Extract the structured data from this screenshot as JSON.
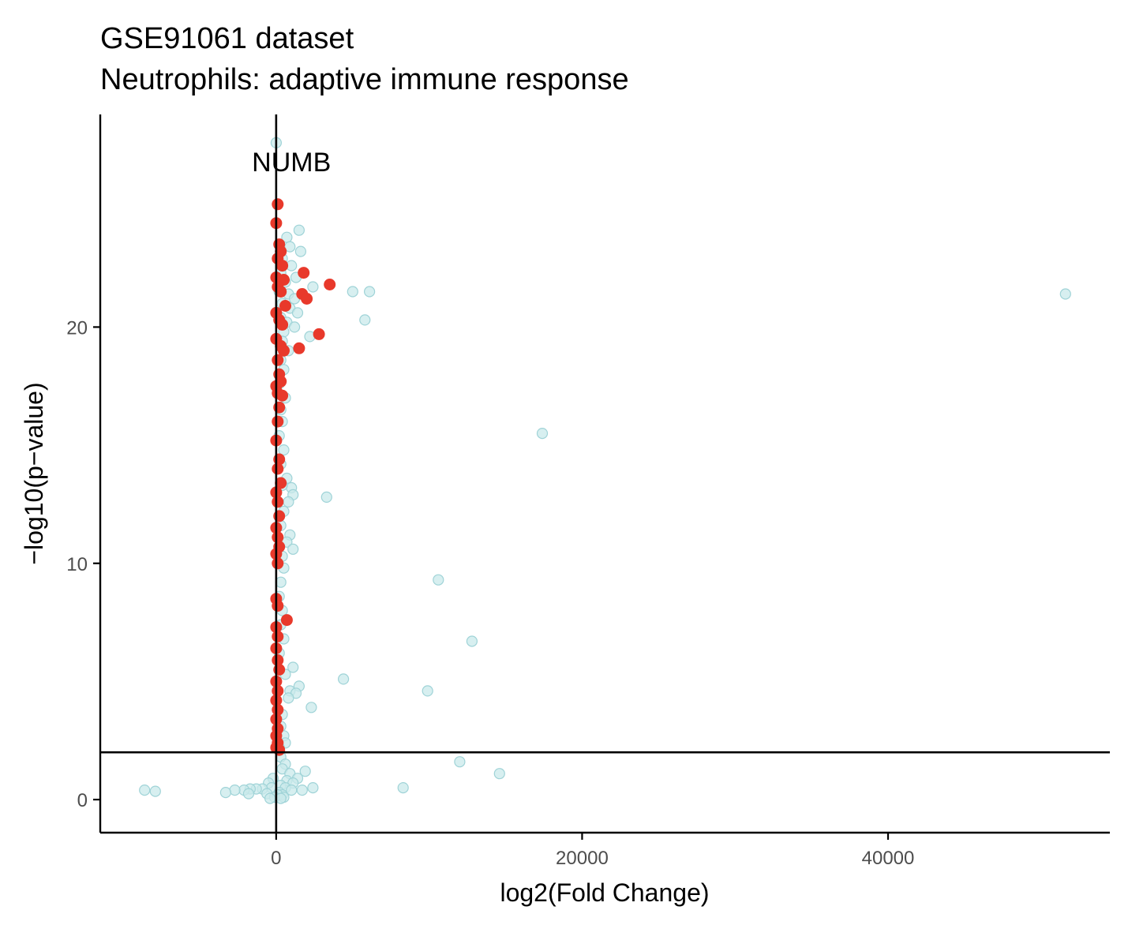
{
  "chart_data": {
    "type": "scatter",
    "title": "GSE91061 dataset",
    "subtitle": "Neutrophils: adaptive immune response",
    "xlabel": "log2(Fold Change)",
    "ylabel": "−log10(p−value)",
    "xlim": [
      -11500,
      54500
    ],
    "ylim": [
      -1.4,
      29
    ],
    "x_ticks": [
      {
        "value": 0,
        "label": "0"
      },
      {
        "value": 20000,
        "label": "20000"
      },
      {
        "value": 40000,
        "label": "40000"
      }
    ],
    "y_ticks": [
      {
        "value": 0,
        "label": "0"
      },
      {
        "value": 10,
        "label": "10"
      },
      {
        "value": 20,
        "label": "20"
      }
    ],
    "grid": false,
    "colors": {
      "background": "#c9e9eb",
      "background_stroke": "#9fd3d7",
      "highlight": "#e8392b",
      "reference_line": "#000000"
    },
    "reference_lines": {
      "vertical_x": 0,
      "horizontal_y": 2
    },
    "annotations": [
      {
        "label": "NUMB",
        "x": 1000,
        "y": 26.6
      }
    ],
    "series": [
      {
        "role": "background",
        "points": [
          [
            0,
            27.8
          ],
          [
            1500,
            24.1
          ],
          [
            700,
            23.8
          ],
          [
            200,
            23.5
          ],
          [
            900,
            23.4
          ],
          [
            1600,
            23.2
          ],
          [
            400,
            22.9
          ],
          [
            1000,
            22.6
          ],
          [
            300,
            22.3
          ],
          [
            1300,
            22.1
          ],
          [
            600,
            21.9
          ],
          [
            2400,
            21.7
          ],
          [
            200,
            21.5
          ],
          [
            800,
            21.4
          ],
          [
            1200,
            21.2
          ],
          [
            400,
            21.0
          ],
          [
            900,
            20.8
          ],
          [
            1400,
            20.6
          ],
          [
            300,
            20.4
          ],
          [
            700,
            20.2
          ],
          [
            1200,
            20.0
          ],
          [
            500,
            19.8
          ],
          [
            2200,
            19.6
          ],
          [
            400,
            19.4
          ],
          [
            800,
            19.0
          ],
          [
            300,
            18.6
          ],
          [
            500,
            18.2
          ],
          [
            200,
            17.6
          ],
          [
            600,
            17.0
          ],
          [
            300,
            16.5
          ],
          [
            400,
            16.0
          ],
          [
            200,
            15.4
          ],
          [
            500,
            14.8
          ],
          [
            300,
            14.2
          ],
          [
            700,
            13.6
          ],
          [
            1000,
            13.2
          ],
          [
            400,
            13.3
          ],
          [
            1100,
            12.9
          ],
          [
            800,
            12.6
          ],
          [
            500,
            12.2
          ],
          [
            300,
            11.6
          ],
          [
            900,
            11.2
          ],
          [
            700,
            10.9
          ],
          [
            1100,
            10.6
          ],
          [
            400,
            10.3
          ],
          [
            500,
            9.8
          ],
          [
            300,
            9.2
          ],
          [
            200,
            8.6
          ],
          [
            400,
            8.0
          ],
          [
            300,
            7.4
          ],
          [
            500,
            6.8
          ],
          [
            200,
            6.2
          ],
          [
            1100,
            5.6
          ],
          [
            600,
            5.3
          ],
          [
            1500,
            4.8
          ],
          [
            900,
            4.6
          ],
          [
            1300,
            4.5
          ],
          [
            800,
            4.3
          ],
          [
            2300,
            3.9
          ],
          [
            400,
            3.6
          ],
          [
            300,
            3.1
          ],
          [
            500,
            2.7
          ],
          [
            600,
            2.4
          ],
          [
            200,
            2.2
          ],
          [
            300,
            1.8
          ],
          [
            600,
            1.5
          ],
          [
            400,
            1.3
          ],
          [
            900,
            1.1
          ],
          [
            1900,
            1.2
          ],
          [
            1400,
            0.9
          ],
          [
            700,
            0.8
          ],
          [
            1100,
            0.7
          ],
          [
            300,
            0.6
          ],
          [
            -200,
            0.9
          ],
          [
            -500,
            0.7
          ],
          [
            600,
            0.5
          ],
          [
            1000,
            0.4
          ],
          [
            2400,
            0.5
          ],
          [
            1700,
            0.4
          ],
          [
            -300,
            0.5
          ],
          [
            -900,
            0.45
          ],
          [
            -1300,
            0.45
          ],
          [
            -1700,
            0.45
          ],
          [
            -2100,
            0.4
          ],
          [
            -2700,
            0.4
          ],
          [
            -1800,
            0.25
          ],
          [
            -3300,
            0.3
          ],
          [
            200,
            0.3
          ],
          [
            -600,
            0.25
          ],
          [
            400,
            0.2
          ],
          [
            100,
            0.2
          ],
          [
            -100,
            0.1
          ],
          [
            500,
            0.1
          ],
          [
            -400,
            0.05
          ],
          [
            300,
            0.05
          ],
          [
            -8600,
            0.4
          ],
          [
            -7900,
            0.35
          ],
          [
            5000,
            21.5
          ],
          [
            6100,
            21.5
          ],
          [
            5800,
            20.3
          ],
          [
            17400,
            15.5
          ],
          [
            3300,
            12.8
          ],
          [
            10600,
            9.3
          ],
          [
            12800,
            6.7
          ],
          [
            4400,
            5.1
          ],
          [
            9900,
            4.6
          ],
          [
            12000,
            1.6
          ],
          [
            14600,
            1.1
          ],
          [
            8300,
            0.5
          ],
          [
            51600,
            21.4
          ]
        ]
      },
      {
        "role": "highlight",
        "points": [
          [
            100,
            25.2
          ],
          [
            0,
            24.4
          ],
          [
            200,
            23.5
          ],
          [
            300,
            23.2
          ],
          [
            100,
            22.9
          ],
          [
            400,
            22.6
          ],
          [
            1800,
            22.3
          ],
          [
            0,
            22.1
          ],
          [
            500,
            22.0
          ],
          [
            3500,
            21.8
          ],
          [
            100,
            21.7
          ],
          [
            1700,
            21.4
          ],
          [
            2000,
            21.2
          ],
          [
            300,
            21.5
          ],
          [
            600,
            20.9
          ],
          [
            0,
            20.6
          ],
          [
            200,
            20.3
          ],
          [
            400,
            20.1
          ],
          [
            2800,
            19.7
          ],
          [
            0,
            19.5
          ],
          [
            300,
            19.2
          ],
          [
            1500,
            19.1
          ],
          [
            500,
            19.0
          ],
          [
            100,
            18.6
          ],
          [
            200,
            18.0
          ],
          [
            0,
            17.5
          ],
          [
            300,
            17.7
          ],
          [
            100,
            17.2
          ],
          [
            400,
            17.1
          ],
          [
            200,
            16.6
          ],
          [
            100,
            16.0
          ],
          [
            0,
            15.2
          ],
          [
            200,
            14.4
          ],
          [
            100,
            14.0
          ],
          [
            300,
            13.4
          ],
          [
            0,
            13.0
          ],
          [
            100,
            12.6
          ],
          [
            200,
            12.0
          ],
          [
            0,
            11.5
          ],
          [
            100,
            11.1
          ],
          [
            200,
            10.7
          ],
          [
            0,
            10.4
          ],
          [
            100,
            10.0
          ],
          [
            0,
            8.5
          ],
          [
            100,
            8.2
          ],
          [
            700,
            7.6
          ],
          [
            0,
            7.3
          ],
          [
            100,
            6.9
          ],
          [
            0,
            6.4
          ],
          [
            100,
            5.9
          ],
          [
            200,
            5.5
          ],
          [
            0,
            5.0
          ],
          [
            100,
            4.6
          ],
          [
            0,
            4.2
          ],
          [
            100,
            3.8
          ],
          [
            0,
            3.4
          ],
          [
            100,
            3.0
          ],
          [
            0,
            2.7
          ],
          [
            100,
            2.4
          ],
          [
            0,
            2.2
          ],
          [
            200,
            2.1
          ]
        ]
      }
    ]
  }
}
